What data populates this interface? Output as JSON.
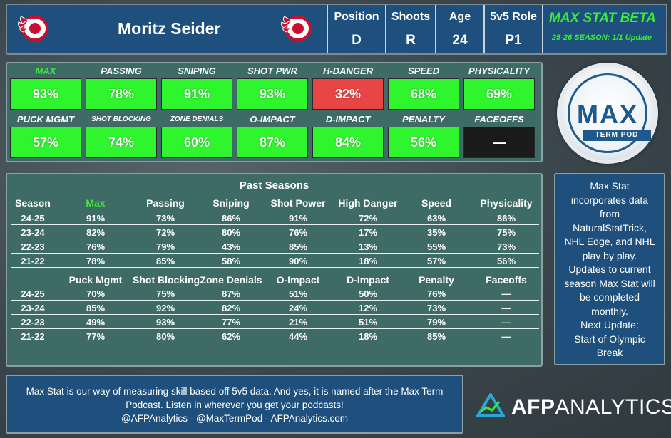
{
  "header": {
    "player_name": "Moritz Seider",
    "cells": [
      {
        "label": "Position",
        "value": "D"
      },
      {
        "label": "Shoots",
        "value": "R"
      },
      {
        "label": "Age",
        "value": "24"
      },
      {
        "label": "5v5 Role",
        "value": "P1"
      }
    ],
    "beta_title": "MAX STAT BETA",
    "beta_subtitle": "25-26 SEASON: 1/1 Update"
  },
  "tiles": {
    "row1": [
      {
        "label": "MAX",
        "value": "93%",
        "color": "#2ef52e",
        "label_color": "#3ce83c"
      },
      {
        "label": "PASSING",
        "value": "78%",
        "color": "#2ef52e"
      },
      {
        "label": "SNIPING",
        "value": "91%",
        "color": "#2ef52e"
      },
      {
        "label": "SHOT PWR",
        "value": "93%",
        "color": "#2ef52e"
      },
      {
        "label": "H-DANGER",
        "value": "32%",
        "color": "#e84545"
      },
      {
        "label": "SPEED",
        "value": "68%",
        "color": "#2ef52e"
      },
      {
        "label": "PHYSICALITY",
        "value": "69%",
        "color": "#2ef52e"
      }
    ],
    "row2": [
      {
        "label": "PUCK MGMT",
        "value": "57%",
        "color": "#2ef52e"
      },
      {
        "label": "SHOT BLOCKING",
        "value": "74%",
        "color": "#2ef52e",
        "small": true
      },
      {
        "label": "ZONE DENIALS",
        "value": "60%",
        "color": "#2ef52e",
        "small": true
      },
      {
        "label": "O-IMPACT",
        "value": "87%",
        "color": "#2ef52e"
      },
      {
        "label": "D-IMPACT",
        "value": "84%",
        "color": "#2ef52e"
      },
      {
        "label": "PENALTY",
        "value": "56%",
        "color": "#2ef52e"
      },
      {
        "label": "FACEOFFS",
        "value": "—",
        "color": "#1a1a1a"
      }
    ]
  },
  "max_logo": {
    "line1": "MAX",
    "line2": "TERM POD"
  },
  "past_seasons": {
    "title": "Past Seasons",
    "headers1": [
      "Season",
      "Max",
      "Passing",
      "Sniping",
      "Shot Power",
      "High Danger",
      "Speed",
      "Physicality"
    ],
    "rows1": [
      [
        "24-25",
        "91%",
        "73%",
        "86%",
        "91%",
        "72%",
        "63%",
        "86%"
      ],
      [
        "23-24",
        "82%",
        "72%",
        "80%",
        "76%",
        "17%",
        "35%",
        "75%"
      ],
      [
        "22-23",
        "76%",
        "79%",
        "43%",
        "85%",
        "13%",
        "55%",
        "73%"
      ],
      [
        "21-22",
        "78%",
        "85%",
        "58%",
        "90%",
        "18%",
        "57%",
        "56%"
      ]
    ],
    "headers2": [
      "",
      "Puck Mgmt",
      "Shot Blocking",
      "Zone Denials",
      "O-Impact",
      "D-Impact",
      "Penalty",
      "Faceoffs"
    ],
    "rows2": [
      [
        "24-25",
        "70%",
        "75%",
        "87%",
        "51%",
        "50%",
        "76%",
        "—"
      ],
      [
        "23-24",
        "85%",
        "92%",
        "82%",
        "24%",
        "12%",
        "73%",
        "—"
      ],
      [
        "22-23",
        "49%",
        "93%",
        "77%",
        "21%",
        "51%",
        "79%",
        "—"
      ],
      [
        "21-22",
        "77%",
        "80%",
        "62%",
        "44%",
        "18%",
        "85%",
        "—"
      ]
    ]
  },
  "sidebar": {
    "lines": [
      "Max Stat",
      "incorporates data",
      "from",
      "NaturalStatTrick,",
      "NHL Edge, and NHL",
      "play by play.",
      "Updates to current",
      "season Max Stat will",
      "be completed",
      "monthly.",
      "Next Update:",
      "Start of Olympic",
      "Break"
    ]
  },
  "footer": {
    "line1": "Max Stat is our way of measuring skill based off 5v5 data. And yes, it is named after the Max Term",
    "line2": "Podcast. Listen in wherever you get your podcasts!",
    "line3": "@AFPAnalytics - @MaxTermPod - AFPAnalytics.com"
  },
  "brand": {
    "afp": "AFP",
    "analytics": "ANALYTICS",
    "logo_icon": "afp-triangle-icon",
    "team_icon": "red-wings-logo-icon"
  }
}
